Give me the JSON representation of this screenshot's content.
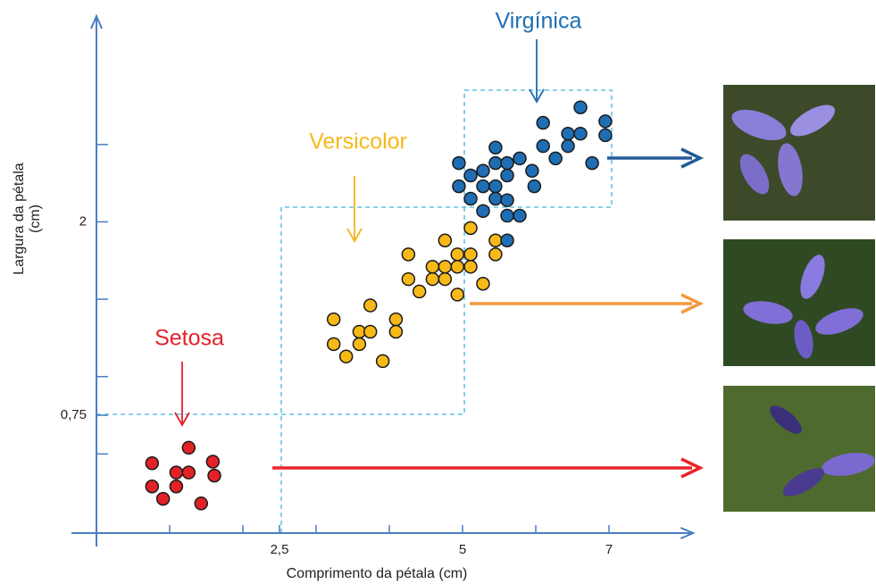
{
  "chart_data": {
    "type": "scatter",
    "xlabel": "Comprimento da pétala (cm)",
    "ylabel": [
      "Largura da pétala",
      "(cm)"
    ],
    "xlim": [
      0,
      8.15
    ],
    "ylim": [
      0,
      3.33
    ],
    "xticks": [
      {
        "value": 2.5,
        "label": "2,5"
      },
      5,
      7
    ],
    "xminor": [
      1,
      2,
      3,
      4,
      6
    ],
    "yticks": [
      {
        "value": 0.75,
        "label": "0,75"
      },
      2
    ],
    "yminor": [
      0.5,
      1,
      1.5,
      2.5
    ],
    "axis_color": "#4a7fc0",
    "series": [
      {
        "name": "Setosa",
        "color": "#e32228",
        "x": [
          0.76,
          0.76,
          0.91,
          1.09,
          1.09,
          1.26,
          1.26,
          1.43,
          1.59,
          1.61
        ],
        "values": [
          0.44,
          0.29,
          0.21,
          0.38,
          0.29,
          0.54,
          0.38,
          0.18,
          0.45,
          0.36
        ]
      },
      {
        "name": "Versicolor",
        "color": "#f7b918",
        "x": [
          3.24,
          3.24,
          3.41,
          3.59,
          3.59,
          3.74,
          3.74,
          3.91,
          4.09,
          4.09,
          4.26,
          4.26,
          4.41,
          4.59,
          4.59,
          4.76,
          4.76,
          4.76,
          4.93,
          4.93,
          4.93,
          5.11,
          5.11,
          5.11,
          5.28,
          5.45,
          5.45
        ],
        "values": [
          1.37,
          1.21,
          1.13,
          1.29,
          1.21,
          1.46,
          1.29,
          1.1,
          1.37,
          1.29,
          1.79,
          1.63,
          1.55,
          1.71,
          1.63,
          1.88,
          1.71,
          1.63,
          1.79,
          1.71,
          1.53,
          1.96,
          1.79,
          1.71,
          1.6,
          1.88,
          1.79
        ]
      },
      {
        "name": "Virgínica",
        "color": "#1f6eb4",
        "x": [
          4.95,
          4.95,
          5.11,
          5.11,
          5.28,
          5.28,
          5.28,
          5.45,
          5.45,
          5.45,
          5.45,
          5.61,
          5.61,
          5.61,
          5.61,
          5.61,
          5.78,
          5.78,
          5.95,
          5.98,
          6.1,
          6.1,
          6.27,
          6.44,
          6.44,
          6.61,
          6.61,
          6.77,
          6.95,
          6.95
        ],
        "values": [
          2.38,
          2.23,
          2.3,
          2.15,
          2.33,
          2.23,
          2.07,
          2.38,
          2.23,
          2.15,
          2.48,
          2.3,
          2.14,
          2.04,
          1.88,
          2.38,
          2.41,
          2.04,
          2.33,
          2.23,
          2.64,
          2.49,
          2.41,
          2.57,
          2.49,
          2.74,
          2.57,
          2.38,
          2.65,
          2.56
        ]
      }
    ]
  }
}
